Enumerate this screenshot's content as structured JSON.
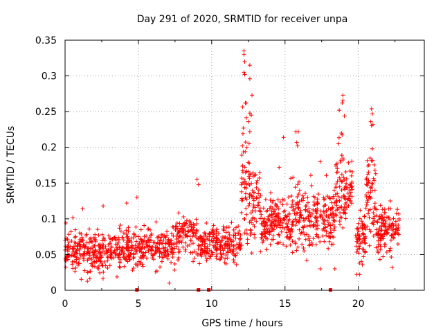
{
  "chart_data": {
    "type": "scatter",
    "title": "Day 291 of 2020, SRMTID for receiver unpa",
    "xlabel": "GPS time / hours",
    "ylabel": "SRMTID / TECUs",
    "xlim": [
      0,
      24.5
    ],
    "ylim": [
      0,
      0.35
    ],
    "x_ticks": [
      0,
      5,
      10,
      15,
      20
    ],
    "x_tick_labels": [
      "0",
      "5",
      "10",
      "15",
      "20"
    ],
    "y_ticks": [
      0,
      0.05,
      0.1,
      0.15,
      0.2,
      0.25,
      0.3,
      0.35
    ],
    "y_tick_labels": [
      "0",
      "0.05",
      "0.1",
      "0.15",
      "0.2",
      "0.25",
      "0.3",
      "0.35"
    ],
    "grid": true,
    "marker": "+",
    "color": "#ff0000",
    "zero_markers_x": [
      4.9,
      9.1,
      9.8,
      18.1
    ],
    "clusters": [
      {
        "x_range": [
          0.0,
          2.5
        ],
        "y_mean": 0.055,
        "y_spread": 0.018,
        "count": 200
      },
      {
        "x_range": [
          2.5,
          4.6
        ],
        "y_mean": 0.055,
        "y_spread": 0.016,
        "count": 150
      },
      {
        "x_range": [
          4.6,
          7.5
        ],
        "y_mean": 0.06,
        "y_spread": 0.016,
        "count": 200
      },
      {
        "x_range": [
          7.5,
          9.0
        ],
        "y_mean": 0.075,
        "y_spread": 0.018,
        "count": 100
      },
      {
        "x_range": [
          9.0,
          12.0
        ],
        "y_mean": 0.065,
        "y_spread": 0.015,
        "count": 220
      },
      {
        "x_range": [
          12.0,
          12.6
        ],
        "y_mean": 0.15,
        "y_spread": 0.05,
        "count": 60
      },
      {
        "x_range": [
          12.6,
          13.3
        ],
        "y_mean": 0.12,
        "y_spread": 0.04,
        "count": 50
      },
      {
        "x_range": [
          13.3,
          15.3
        ],
        "y_mean": 0.095,
        "y_spread": 0.022,
        "count": 160
      },
      {
        "x_range": [
          15.3,
          17.0
        ],
        "y_mean": 0.1,
        "y_spread": 0.03,
        "count": 130
      },
      {
        "x_range": [
          17.0,
          18.4
        ],
        "y_mean": 0.1,
        "y_spread": 0.025,
        "count": 110
      },
      {
        "x_range": [
          18.4,
          19.0
        ],
        "y_mean": 0.14,
        "y_spread": 0.04,
        "count": 50
      },
      {
        "x_range": [
          19.0,
          19.6
        ],
        "y_mean": 0.13,
        "y_spread": 0.025,
        "count": 50
      },
      {
        "x_range": [
          19.8,
          20.5
        ],
        "y_mean": 0.07,
        "y_spread": 0.02,
        "count": 70
      },
      {
        "x_range": [
          20.5,
          21.2
        ],
        "y_mean": 0.13,
        "y_spread": 0.04,
        "count": 60
      },
      {
        "x_range": [
          21.2,
          22.8
        ],
        "y_mean": 0.085,
        "y_spread": 0.02,
        "count": 130
      }
    ],
    "peaks": [
      {
        "x": 12.2,
        "y": 0.335
      },
      {
        "x": 12.2,
        "y": 0.33
      },
      {
        "x": 12.25,
        "y": 0.32
      },
      {
        "x": 12.2,
        "y": 0.305
      },
      {
        "x": 12.25,
        "y": 0.302
      },
      {
        "x": 12.6,
        "y": 0.315
      },
      {
        "x": 12.6,
        "y": 0.296
      },
      {
        "x": 12.75,
        "y": 0.273
      },
      {
        "x": 12.3,
        "y": 0.262
      },
      {
        "x": 12.35,
        "y": 0.262
      },
      {
        "x": 12.6,
        "y": 0.248
      },
      {
        "x": 12.7,
        "y": 0.245
      },
      {
        "x": 12.5,
        "y": 0.236
      },
      {
        "x": 12.6,
        "y": 0.222
      },
      {
        "x": 12.4,
        "y": 0.2
      },
      {
        "x": 18.95,
        "y": 0.273
      },
      {
        "x": 18.95,
        "y": 0.266
      },
      {
        "x": 18.9,
        "y": 0.262
      },
      {
        "x": 18.7,
        "y": 0.252
      },
      {
        "x": 19.05,
        "y": 0.244
      },
      {
        "x": 18.85,
        "y": 0.22
      },
      {
        "x": 20.9,
        "y": 0.254
      },
      {
        "x": 20.95,
        "y": 0.247
      },
      {
        "x": 20.85,
        "y": 0.236
      },
      {
        "x": 21.0,
        "y": 0.232
      },
      {
        "x": 20.95,
        "y": 0.198
      },
      {
        "x": 20.8,
        "y": 0.185
      },
      {
        "x": 15.75,
        "y": 0.222
      },
      {
        "x": 15.9,
        "y": 0.222
      },
      {
        "x": 15.8,
        "y": 0.207
      },
      {
        "x": 15.85,
        "y": 0.202
      },
      {
        "x": 14.9,
        "y": 0.214
      },
      {
        "x": 14.6,
        "y": 0.172
      },
      {
        "x": 18.65,
        "y": 0.205
      },
      {
        "x": 17.4,
        "y": 0.18
      },
      {
        "x": 9.0,
        "y": 0.155
      },
      {
        "x": 9.1,
        "y": 0.148
      },
      {
        "x": 4.9,
        "y": 0.13
      },
      {
        "x": 2.6,
        "y": 0.118
      },
      {
        "x": 4.2,
        "y": 0.122
      },
      {
        "x": 1.2,
        "y": 0.114
      },
      {
        "x": 7.1,
        "y": 0.01
      },
      {
        "x": 19.9,
        "y": 0.022
      },
      {
        "x": 18.4,
        "y": 0.03
      },
      {
        "x": 17.4,
        "y": 0.03
      }
    ]
  }
}
